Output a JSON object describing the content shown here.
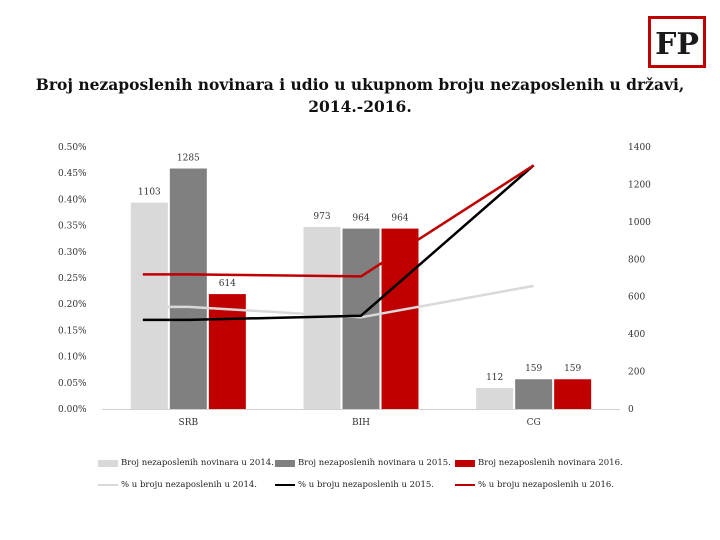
{
  "logo": {
    "text": "FP",
    "color": "#c00000"
  },
  "chart_data": {
    "type": "bar",
    "title": "Broj nezaposlenih novinara i udio u ukupnom broju nezaposlenih u državi, 2014.-2016.",
    "categories": [
      "SRB",
      "BIH",
      "CG"
    ],
    "y_left": {
      "min": 0,
      "max": 0.5,
      "ticks": [
        "0.00%",
        "0.05%",
        "0.10%",
        "0.15%",
        "0.20%",
        "0.25%",
        "0.30%",
        "0.35%",
        "0.40%",
        "0.45%",
        "0.50%"
      ]
    },
    "y_right": {
      "min": 0,
      "max": 1400,
      "ticks": [
        "0",
        "200",
        "400",
        "600",
        "800",
        "1000",
        "1200",
        "1400"
      ]
    },
    "bar_series": [
      {
        "name": "Broj nezaposlenih novinara u 2014.",
        "color": "#d9d9d9",
        "values": [
          1103,
          973,
          112
        ],
        "labels": [
          "1103",
          "973",
          "112"
        ]
      },
      {
        "name": "Broj nezaposlenih novinara u 2015.",
        "color": "#808080",
        "values": [
          1285,
          964,
          159
        ],
        "labels": [
          "1285",
          "964",
          "159"
        ]
      },
      {
        "name": "Broj nezaposlenih novinara 2016.",
        "color": "#c00000",
        "values": [
          614,
          964,
          159
        ],
        "labels": [
          "614",
          "964",
          "159"
        ]
      }
    ],
    "line_series": [
      {
        "name": "% u broju nezaposlenih u 2014.",
        "color": "#d9d9d9",
        "values": [
          0.195,
          0.175,
          0.235
        ]
      },
      {
        "name": "% u broju nezaposlenih u 2015.",
        "color": "#000000",
        "values": [
          0.17,
          0.178,
          0.465
        ]
      },
      {
        "name": "% u broju nezaposlenih u 2016.",
        "color": "#c00000",
        "values": [
          0.257,
          0.253,
          0.465
        ]
      }
    ],
    "legend_position": "bottom",
    "grid": false
  }
}
